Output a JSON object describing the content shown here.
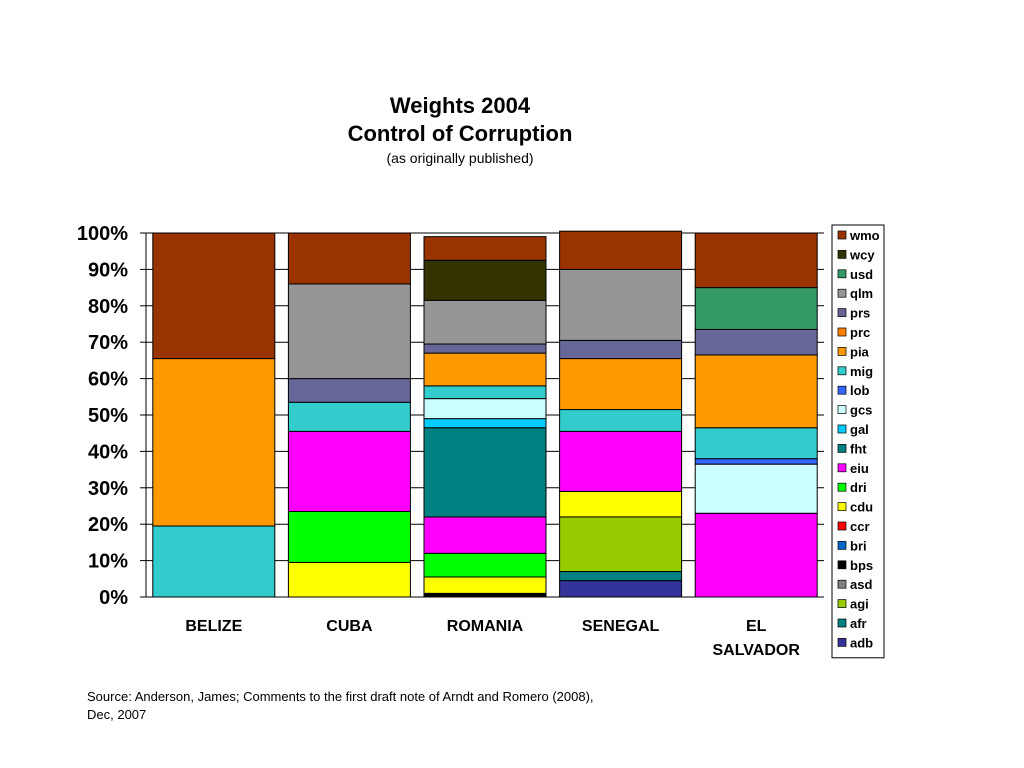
{
  "chart_data": {
    "type": "bar",
    "stacked": true,
    "title": "Weights 2004",
    "subtitle": "Control of Corruption",
    "note": "(as originally published)",
    "categories": [
      "BELIZE",
      "CUBA",
      "ROMANIA",
      "SENEGAL",
      "EL SALVADOR"
    ],
    "y_ticks": [
      "0%",
      "10%",
      "20%",
      "30%",
      "40%",
      "50%",
      "60%",
      "70%",
      "80%",
      "90%",
      "100%"
    ],
    "ylim": [
      0,
      100
    ],
    "grid": true,
    "legend_position": "right",
    "series": [
      {
        "name": "adb",
        "color": "#333399",
        "values": [
          0,
          0,
          0,
          4.5,
          0
        ]
      },
      {
        "name": "afr",
        "color": "#008080",
        "values": [
          0,
          0,
          0,
          2.5,
          0
        ]
      },
      {
        "name": "agi",
        "color": "#99CC00",
        "values": [
          0,
          0,
          0,
          15,
          0
        ]
      },
      {
        "name": "asd",
        "color": "#808080",
        "values": [
          0,
          0,
          0,
          0,
          0
        ]
      },
      {
        "name": "bps",
        "color": "#000000",
        "values": [
          0,
          0,
          1,
          0,
          0
        ]
      },
      {
        "name": "bri",
        "color": "#0066CC",
        "values": [
          0,
          0,
          0,
          0,
          0
        ]
      },
      {
        "name": "ccr",
        "color": "#FF0000",
        "values": [
          0,
          0,
          0,
          0,
          0
        ]
      },
      {
        "name": "cdu",
        "color": "#FFFF00",
        "values": [
          0,
          9.5,
          4.5,
          7,
          0
        ]
      },
      {
        "name": "dri",
        "color": "#00FF00",
        "values": [
          0,
          14,
          6.5,
          0,
          0
        ]
      },
      {
        "name": "eiu",
        "color": "#FF00FF",
        "values": [
          0,
          22,
          10,
          16.5,
          23
        ]
      },
      {
        "name": "fht",
        "color": "#008080",
        "values": [
          0,
          0,
          24.5,
          0,
          0
        ]
      },
      {
        "name": "gal",
        "color": "#00CCFF",
        "values": [
          0,
          0,
          2.5,
          0,
          0
        ]
      },
      {
        "name": "gcs",
        "color": "#CCFFFF",
        "values": [
          0,
          0,
          5.5,
          0,
          13.5
        ]
      },
      {
        "name": "lob",
        "color": "#3366FF",
        "values": [
          0,
          0,
          0,
          0,
          1.5
        ]
      },
      {
        "name": "mig",
        "color": "#33CCCC",
        "values": [
          19.5,
          8,
          3.5,
          6,
          8.5
        ]
      },
      {
        "name": "pia",
        "color": "#FF9900",
        "values": [
          46,
          0,
          9,
          14,
          20
        ]
      },
      {
        "name": "prc",
        "color": "#FF8000",
        "values": [
          0,
          0,
          0,
          0,
          0
        ]
      },
      {
        "name": "prs",
        "color": "#666699",
        "values": [
          0,
          6.5,
          2.5,
          5,
          7
        ]
      },
      {
        "name": "qlm",
        "color": "#969696",
        "values": [
          0,
          26,
          12,
          19.5,
          0
        ]
      },
      {
        "name": "usd",
        "color": "#339966",
        "values": [
          0,
          0,
          0,
          0,
          11.5
        ]
      },
      {
        "name": "wcy",
        "color": "#333300",
        "values": [
          0,
          0,
          11,
          0,
          0
        ]
      },
      {
        "name": "wmo",
        "color": "#993300",
        "values": [
          34.5,
          14,
          6.5,
          10.5,
          15
        ]
      }
    ],
    "legend_order": [
      "wmo",
      "wcy",
      "usd",
      "qlm",
      "prs",
      "prc",
      "pia",
      "mig",
      "lob",
      "gcs",
      "gal",
      "fht",
      "eiu",
      "dri",
      "cdu",
      "ccr",
      "bri",
      "bps",
      "asd",
      "agi",
      "afr",
      "adb"
    ]
  },
  "source_text_line1": "Source: Anderson, James; Comments to the first draft note of Arndt and Romero (2008),",
  "source_text_line2": "Dec, 2007"
}
